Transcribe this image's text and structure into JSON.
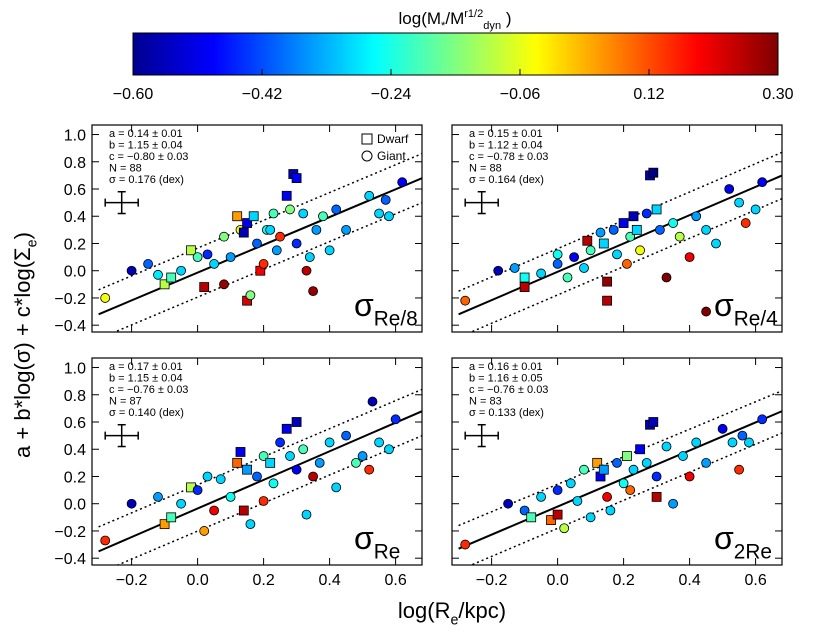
{
  "figure": {
    "xlabel": [
      {
        "t": "log(R",
        "s": "base"
      },
      {
        "t": "e",
        "s": "sub"
      },
      {
        "t": "/kpc)",
        "s": "base"
      }
    ],
    "ylabel": [
      {
        "t": "a + b*log(σ) + c*log(Σ",
        "s": "base"
      },
      {
        "t": "e",
        "s": "sub"
      },
      {
        "t": ")",
        "s": "base"
      }
    ]
  },
  "axes": {
    "xlim": [
      -0.32,
      0.68
    ],
    "ylim": [
      -0.45,
      1.07
    ],
    "xticks": [
      {
        "value": -0.2,
        "label": "−0.2"
      },
      {
        "value": 0.0,
        "label": "0.0"
      },
      0.2,
      0.4,
      0.6
    ],
    "yticks": [
      {
        "value": -0.4,
        "label": "−0.4"
      },
      {
        "value": -0.2,
        "label": "−0.2"
      },
      {
        "value": 0.0,
        "label": "0.0"
      },
      0.2,
      0.4,
      0.6,
      0.8,
      {
        "value": 1.0,
        "label": "1.0"
      }
    ]
  },
  "colorbar": {
    "title": [
      {
        "t": "log(M",
        "s": "base"
      },
      {
        "t": "*",
        "s": "sub"
      },
      {
        "t": "/M",
        "s": "base"
      },
      {
        "t": "r1/2",
        "s": "sup"
      },
      {
        "t": "dyn",
        "s": "sub"
      },
      {
        "t": " )",
        "s": "base"
      }
    ],
    "colormap": "jet",
    "clim": [
      -0.6,
      0.3
    ],
    "ticks": [
      {
        "value": -0.6,
        "label": "−0.60"
      },
      {
        "value": -0.42,
        "label": "−0.42"
      },
      {
        "value": -0.24,
        "label": "−0.24"
      },
      {
        "value": -0.06,
        "label": "−0.06"
      },
      0.12,
      {
        "value": 0.3,
        "label": "0.30"
      }
    ]
  },
  "chart_data": [
    {
      "type": "scatter",
      "label": [
        {
          "t": "σ",
          "s": "base"
        },
        {
          "t": "Re/8",
          "s": "sub"
        }
      ],
      "stats": [
        "a =  0.14 ± 0.01",
        "b =  1.15 ± 0.04",
        "c = −0.80 ± 0.03",
        "N = 88",
        "σ = 0.176 (dex)"
      ],
      "legend": [
        {
          "name": "Dwarf",
          "marker": "s"
        },
        {
          "name": "Giant",
          "marker": "o"
        }
      ],
      "errorbar": {
        "x": -0.23,
        "y": 0.5,
        "xerr": 0.05,
        "yerr": 0.08
      },
      "fit": {
        "x": [
          -0.3,
          0.7
        ],
        "y": [
          -0.32,
          0.7
        ]
      },
      "upper": {
        "x": [
          -0.3,
          0.7
        ],
        "y": [
          -0.14,
          0.88
        ]
      },
      "lower": {
        "x": [
          -0.3,
          0.7
        ],
        "y": [
          -0.5,
          0.52
        ]
      },
      "x": [
        -0.28,
        -0.2,
        -0.15,
        -0.12,
        -0.1,
        -0.08,
        -0.05,
        -0.02,
        0.0,
        0.02,
        0.03,
        0.05,
        0.08,
        0.08,
        0.1,
        0.12,
        0.13,
        0.14,
        0.15,
        0.15,
        0.16,
        0.17,
        0.18,
        0.19,
        0.2,
        0.21,
        0.22,
        0.23,
        0.24,
        0.25,
        0.27,
        0.28,
        0.29,
        0.3,
        0.3,
        0.32,
        0.33,
        0.34,
        0.35,
        0.36,
        0.38,
        0.4,
        0.42,
        0.45,
        0.52,
        0.55,
        0.57,
        0.62,
        0.58
      ],
      "y": [
        -0.2,
        0.0,
        0.05,
        -0.03,
        -0.1,
        -0.05,
        0.0,
        0.15,
        0.1,
        -0.12,
        0.12,
        0.05,
        -0.1,
        0.25,
        0.1,
        0.4,
        0.3,
        0.28,
        0.35,
        -0.22,
        -0.18,
        0.4,
        0.2,
        0.0,
        0.05,
        0.3,
        0.3,
        0.42,
        0.15,
        0.25,
        0.55,
        0.45,
        0.71,
        0.68,
        0.2,
        0.42,
        0.0,
        0.1,
        -0.15,
        0.3,
        0.4,
        0.15,
        0.45,
        0.3,
        0.55,
        0.42,
        0.52,
        0.65,
        0.4
      ],
      "c": [
        -0.05,
        -0.55,
        -0.4,
        -0.28,
        -0.1,
        -0.2,
        -0.3,
        -0.1,
        -0.2,
        0.25,
        -0.45,
        -0.3,
        0.28,
        -0.15,
        -0.35,
        0.05,
        -0.05,
        -0.55,
        -0.5,
        0.22,
        -0.15,
        -0.3,
        -0.4,
        0.2,
        0.15,
        -0.25,
        -0.3,
        -0.2,
        -0.35,
        0.15,
        -0.5,
        -0.15,
        -0.55,
        -0.5,
        -0.45,
        -0.3,
        0.25,
        -0.3,
        0.28,
        -0.35,
        -0.2,
        -0.3,
        -0.4,
        -0.35,
        -0.3,
        -0.3,
        -0.4,
        -0.5,
        -0.3
      ],
      "marker": [
        "o",
        "o",
        "o",
        "o",
        "s",
        "s",
        "o",
        "s",
        "o",
        "s",
        "o",
        "o",
        "o",
        "o",
        "o",
        "s",
        "o",
        "s",
        "s",
        "s",
        "o",
        "s",
        "o",
        "s",
        "o",
        "o",
        "o",
        "o",
        "o",
        "o",
        "s",
        "o",
        "s",
        "s",
        "o",
        "o",
        "o",
        "o",
        "o",
        "o",
        "o",
        "o",
        "o",
        "o",
        "o",
        "o",
        "o",
        "o",
        "o"
      ]
    },
    {
      "type": "scatter",
      "label": [
        {
          "t": "σ",
          "s": "base"
        },
        {
          "t": "Re/4",
          "s": "sub"
        }
      ],
      "stats": [
        "a =  0.15 ± 0.01",
        "b =  1.12 ± 0.04",
        "c = −0.78 ± 0.03",
        "N = 88",
        "σ = 0.164 (dex)"
      ],
      "errorbar": {
        "x": -0.23,
        "y": 0.5,
        "xerr": 0.05,
        "yerr": 0.08
      },
      "fit": {
        "x": [
          -0.3,
          0.7
        ],
        "y": [
          -0.32,
          0.72
        ]
      },
      "upper": {
        "x": [
          -0.3,
          0.7
        ],
        "y": [
          -0.15,
          0.89
        ]
      },
      "lower": {
        "x": [
          -0.3,
          0.7
        ],
        "y": [
          -0.49,
          0.55
        ]
      },
      "x": [
        -0.28,
        -0.18,
        -0.13,
        -0.1,
        -0.1,
        -0.05,
        0.0,
        0.0,
        0.03,
        0.05,
        0.08,
        0.09,
        0.1,
        0.13,
        0.14,
        0.15,
        0.15,
        0.17,
        0.18,
        0.2,
        0.21,
        0.22,
        0.23,
        0.24,
        0.25,
        0.27,
        0.28,
        0.29,
        0.3,
        0.31,
        0.33,
        0.35,
        0.37,
        0.4,
        0.42,
        0.45,
        0.48,
        0.52,
        0.55,
        0.57,
        0.6,
        0.62,
        0.45
      ],
      "y": [
        -0.22,
        0.0,
        0.02,
        -0.05,
        -0.12,
        -0.02,
        0.05,
        0.12,
        -0.05,
        0.1,
        0.02,
        0.22,
        0.15,
        0.28,
        0.2,
        -0.08,
        -0.22,
        0.3,
        0.12,
        0.35,
        0.05,
        0.25,
        0.4,
        0.3,
        0.15,
        0.42,
        0.7,
        0.72,
        0.45,
        0.3,
        -0.05,
        0.35,
        0.25,
        0.1,
        0.4,
        0.3,
        0.2,
        0.6,
        0.5,
        0.35,
        0.45,
        0.65,
        -0.3
      ],
      "c": [
        0.1,
        -0.55,
        -0.35,
        -0.25,
        0.25,
        -0.3,
        -0.4,
        -0.25,
        -0.2,
        -0.5,
        -0.3,
        0.25,
        -0.2,
        -0.35,
        -0.3,
        0.28,
        0.25,
        -0.4,
        -0.3,
        -0.5,
        0.1,
        -0.2,
        -0.55,
        -0.3,
        -0.05,
        -0.45,
        -0.55,
        -0.6,
        -0.3,
        -0.4,
        0.3,
        -0.25,
        -0.1,
        0.2,
        -0.35,
        -0.3,
        -0.3,
        -0.5,
        -0.3,
        0.15,
        -0.3,
        -0.5,
        0.3
      ],
      "marker": [
        "o",
        "o",
        "o",
        "s",
        "s",
        "o",
        "o",
        "o",
        "o",
        "o",
        "o",
        "s",
        "o",
        "o",
        "s",
        "s",
        "s",
        "o",
        "o",
        "s",
        "o",
        "o",
        "s",
        "s",
        "o",
        "o",
        "s",
        "s",
        "s",
        "o",
        "o",
        "o",
        "o",
        "o",
        "o",
        "o",
        "o",
        "o",
        "o",
        "o",
        "o",
        "o",
        "o"
      ]
    },
    {
      "type": "scatter",
      "label": [
        {
          "t": "σ",
          "s": "base"
        },
        {
          "t": "Re",
          "s": "sub"
        }
      ],
      "stats": [
        "a =  0.17 ± 0.01",
        "b =  1.15 ± 0.04",
        "c = −0.76 ± 0.03",
        "N = 87",
        "σ = 0.140 (dex)"
      ],
      "errorbar": {
        "x": -0.23,
        "y": 0.5,
        "xerr": 0.05,
        "yerr": 0.08
      },
      "fit": {
        "x": [
          -0.3,
          0.7
        ],
        "y": [
          -0.35,
          0.7
        ]
      },
      "upper": {
        "x": [
          -0.3,
          0.7
        ],
        "y": [
          -0.17,
          0.86
        ]
      },
      "lower": {
        "x": [
          -0.3,
          0.7
        ],
        "y": [
          -0.51,
          0.52
        ]
      },
      "x": [
        -0.28,
        -0.2,
        -0.12,
        -0.1,
        -0.08,
        -0.05,
        -0.02,
        0.0,
        0.02,
        0.03,
        0.05,
        0.07,
        0.1,
        0.12,
        0.13,
        0.14,
        0.15,
        0.16,
        0.18,
        0.2,
        0.2,
        0.22,
        0.23,
        0.25,
        0.27,
        0.28,
        0.3,
        0.3,
        0.32,
        0.33,
        0.35,
        0.37,
        0.4,
        0.42,
        0.45,
        0.48,
        0.5,
        0.53,
        0.55,
        0.58,
        0.6,
        0.52
      ],
      "y": [
        -0.27,
        0.0,
        0.05,
        -0.15,
        -0.1,
        0.0,
        0.12,
        0.1,
        -0.2,
        0.2,
        -0.05,
        0.18,
        0.05,
        0.3,
        0.38,
        -0.05,
        0.25,
        -0.15,
        0.2,
        0.35,
        0.02,
        0.3,
        0.15,
        0.45,
        0.55,
        0.35,
        0.6,
        0.25,
        0.4,
        -0.08,
        0.2,
        0.3,
        0.45,
        0.12,
        0.5,
        0.3,
        0.35,
        0.75,
        0.45,
        0.4,
        0.62,
        0.25
      ],
      "c": [
        0.15,
        -0.55,
        -0.35,
        0.05,
        -0.2,
        -0.3,
        -0.1,
        -0.45,
        0.05,
        -0.3,
        0.2,
        -0.3,
        -0.25,
        0.1,
        -0.5,
        0.25,
        -0.35,
        -0.3,
        -0.4,
        -0.2,
        0.15,
        -0.3,
        -0.25,
        -0.45,
        -0.5,
        -0.3,
        -0.55,
        -0.5,
        -0.2,
        -0.3,
        0.25,
        -0.35,
        -0.3,
        -0.3,
        -0.4,
        -0.2,
        -0.35,
        -0.55,
        -0.3,
        -0.3,
        -0.45,
        0.15
      ],
      "marker": [
        "o",
        "o",
        "o",
        "s",
        "s",
        "o",
        "s",
        "o",
        "o",
        "o",
        "o",
        "o",
        "o",
        "s",
        "s",
        "s",
        "s",
        "o",
        "o",
        "o",
        "o",
        "s",
        "o",
        "o",
        "s",
        "o",
        "s",
        "o",
        "o",
        "o",
        "o",
        "o",
        "o",
        "o",
        "o",
        "o",
        "o",
        "o",
        "o",
        "o",
        "o",
        "o"
      ]
    },
    {
      "type": "scatter",
      "label": [
        {
          "t": "σ",
          "s": "base"
        },
        {
          "t": "2Re",
          "s": "sub"
        }
      ],
      "stats": [
        "a =  0.16 ± 0.01",
        "b =  1.16 ± 0.05",
        "c = −0.76 ± 0.03",
        "N = 83",
        "σ = 0.133 (dex)"
      ],
      "errorbar": {
        "x": -0.23,
        "y": 0.5,
        "xerr": 0.05,
        "yerr": 0.08
      },
      "fit": {
        "x": [
          -0.3,
          0.7
        ],
        "y": [
          -0.33,
          0.7
        ]
      },
      "upper": {
        "x": [
          -0.3,
          0.7
        ],
        "y": [
          -0.16,
          0.85
        ]
      },
      "lower": {
        "x": [
          -0.3,
          0.7
        ],
        "y": [
          -0.49,
          0.54
        ]
      },
      "x": [
        -0.28,
        -0.15,
        -0.1,
        -0.08,
        -0.05,
        -0.02,
        0.0,
        0.0,
        0.02,
        0.04,
        0.06,
        0.08,
        0.1,
        0.12,
        0.13,
        0.14,
        0.15,
        0.16,
        0.18,
        0.2,
        0.21,
        0.22,
        0.23,
        0.25,
        0.27,
        0.28,
        0.29,
        0.3,
        0.3,
        0.33,
        0.35,
        0.38,
        0.4,
        0.42,
        0.45,
        0.5,
        0.53,
        0.56,
        0.58,
        0.62,
        0.55
      ],
      "y": [
        -0.3,
        0.0,
        -0.05,
        -0.1,
        0.05,
        -0.12,
        -0.08,
        0.1,
        -0.18,
        0.15,
        0.02,
        0.25,
        -0.1,
        0.3,
        0.2,
        0.25,
        0.05,
        -0.05,
        0.3,
        0.15,
        0.35,
        0.1,
        0.25,
        0.4,
        0.3,
        0.58,
        0.6,
        0.05,
        0.2,
        0.42,
        0.0,
        0.35,
        0.2,
        0.45,
        0.3,
        0.55,
        0.45,
        0.5,
        0.45,
        0.62,
        0.25
      ],
      "c": [
        0.15,
        -0.55,
        -0.4,
        -0.2,
        -0.3,
        0.1,
        0.25,
        -0.45,
        -0.1,
        -0.3,
        -0.3,
        -0.2,
        -0.3,
        0.05,
        -0.5,
        -0.35,
        0.2,
        -0.3,
        -0.4,
        -0.25,
        -0.15,
        0.1,
        -0.3,
        -0.5,
        -0.3,
        -0.55,
        -0.55,
        0.25,
        -0.45,
        -0.3,
        -0.35,
        -0.3,
        0.2,
        -0.3,
        -0.35,
        -0.5,
        -0.3,
        -0.4,
        -0.3,
        -0.45,
        0.15
      ],
      "marker": [
        "o",
        "o",
        "o",
        "s",
        "o",
        "s",
        "s",
        "o",
        "o",
        "o",
        "o",
        "o",
        "o",
        "s",
        "s",
        "s",
        "o",
        "o",
        "o",
        "o",
        "s",
        "o",
        "o",
        "s",
        "o",
        "s",
        "s",
        "s",
        "o",
        "o",
        "o",
        "o",
        "o",
        "o",
        "o",
        "o",
        "o",
        "o",
        "o",
        "o",
        "o"
      ]
    }
  ]
}
